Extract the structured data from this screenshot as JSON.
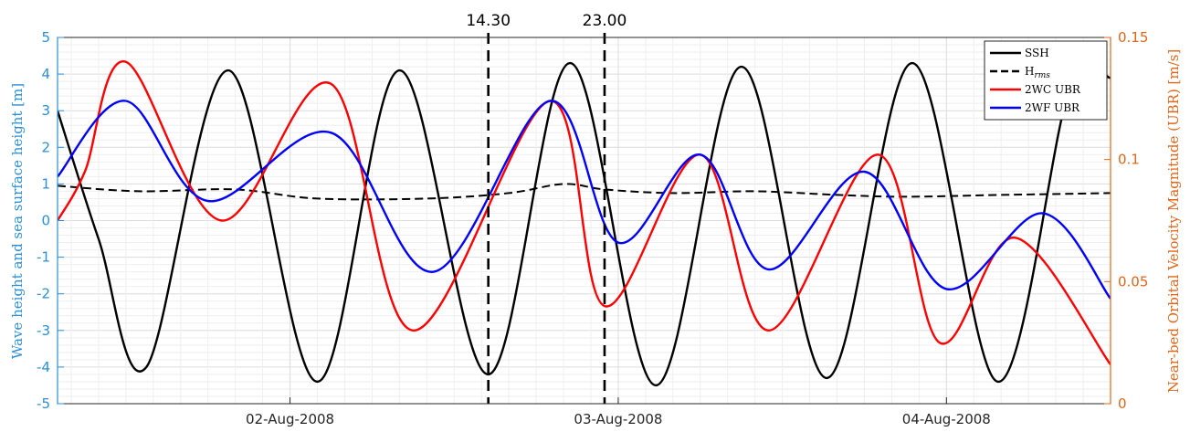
{
  "chart_data": {
    "type": "line",
    "title": "",
    "xlabel": "",
    "x_tick_labels": [
      "02-Aug-2008",
      "03-Aug-2008",
      "04-Aug-2008"
    ],
    "x_range": [
      "01-Aug-2008 07:00",
      "04-Aug-2008 12:00"
    ],
    "left_axis": {
      "label": "Wave height and sea surface height [m]",
      "ylim": [
        -5,
        5
      ],
      "ticks": [
        "5",
        "4",
        "3",
        "2",
        "1",
        "0",
        "-1",
        "-2",
        "-3",
        "-4",
        "-5"
      ],
      "color": "#2b8fd6"
    },
    "right_axis": {
      "label": "Near-bed Orbital Velocity Magnitude (UBR) [m/s]",
      "ylim": [
        0,
        0.15
      ],
      "ticks": [
        "0.15",
        "0.1",
        "0.05",
        "0"
      ],
      "color": "#e0661a"
    },
    "grid": true,
    "legend_position": "top-right",
    "markers": [
      {
        "label": "14.30",
        "x": "02-Aug-2008 14:30"
      },
      {
        "label": "23.00",
        "x": "02-Aug-2008 23:00"
      }
    ],
    "series": [
      {
        "name": "SSH",
        "axis": "left",
        "color": "#000000",
        "style": "solid",
        "points": [
          [
            "01-Aug-2008 07:00",
            3.0
          ],
          [
            "01-Aug-2008 10:00",
            -0.5
          ],
          [
            "01-Aug-2008 13:30",
            -4.0
          ],
          [
            "01-Aug-2008 19:30",
            4.1
          ],
          [
            "02-Aug-2008 02:00",
            -4.4
          ],
          [
            "02-Aug-2008 08:00",
            4.1
          ],
          [
            "02-Aug-2008 14:30",
            -4.2
          ],
          [
            "02-Aug-2008 20:30",
            4.3
          ],
          [
            "03-Aug-2008 02:45",
            -4.5
          ],
          [
            "03-Aug-2008 09:00",
            4.2
          ],
          [
            "03-Aug-2008 15:15",
            -4.3
          ],
          [
            "03-Aug-2008 21:30",
            4.3
          ],
          [
            "04-Aug-2008 03:45",
            -4.4
          ],
          [
            "04-Aug-2008 09:00",
            3.6
          ],
          [
            "04-Aug-2008 12:00",
            3.9
          ]
        ]
      },
      {
        "name": "Hrms",
        "axis": "left",
        "color": "#000000",
        "style": "dashed",
        "points": [
          [
            "01-Aug-2008 07:00",
            0.95
          ],
          [
            "01-Aug-2008 13:00",
            0.8
          ],
          [
            "01-Aug-2008 20:00",
            0.85
          ],
          [
            "02-Aug-2008 02:00",
            0.6
          ],
          [
            "02-Aug-2008 10:00",
            0.6
          ],
          [
            "02-Aug-2008 16:00",
            0.75
          ],
          [
            "02-Aug-2008 20:00",
            1.0
          ],
          [
            "02-Aug-2008 23:00",
            0.85
          ],
          [
            "03-Aug-2008 04:00",
            0.75
          ],
          [
            "03-Aug-2008 10:00",
            0.8
          ],
          [
            "03-Aug-2008 16:00",
            0.7
          ],
          [
            "03-Aug-2008 21:00",
            0.65
          ],
          [
            "04-Aug-2008 04:00",
            0.7
          ],
          [
            "04-Aug-2008 12:00",
            0.75
          ]
        ]
      },
      {
        "name": "2WC UBR",
        "axis": "right",
        "color": "#ff0000",
        "style": "solid",
        "points": [
          [
            "01-Aug-2008 07:00",
            0.075
          ],
          [
            "01-Aug-2008 09:00",
            0.095
          ],
          [
            "01-Aug-2008 12:00",
            0.14
          ],
          [
            "01-Aug-2008 19:00",
            0.075
          ],
          [
            "02-Aug-2008 03:00",
            0.131
          ],
          [
            "02-Aug-2008 09:00",
            0.03
          ],
          [
            "02-Aug-2008 19:00",
            0.124
          ],
          [
            "02-Aug-2008 23:00",
            0.04
          ],
          [
            "03-Aug-2008 06:00",
            0.102
          ],
          [
            "03-Aug-2008 11:00",
            0.03
          ],
          [
            "03-Aug-2008 19:00",
            0.102
          ],
          [
            "03-Aug-2008 23:30",
            0.025
          ],
          [
            "04-Aug-2008 05:00",
            0.068
          ],
          [
            "04-Aug-2008 12:00",
            0.016
          ]
        ]
      },
      {
        "name": "2WF UBR",
        "axis": "right",
        "color": "#0000ff",
        "style": "solid",
        "points": [
          [
            "01-Aug-2008 07:00",
            0.093
          ],
          [
            "01-Aug-2008 12:00",
            0.124
          ],
          [
            "01-Aug-2008 18:00",
            0.083
          ],
          [
            "02-Aug-2008 03:00",
            0.111
          ],
          [
            "02-Aug-2008 10:30",
            0.054
          ],
          [
            "02-Aug-2008 19:00",
            0.124
          ],
          [
            "03-Aug-2008 00:00",
            0.066
          ],
          [
            "03-Aug-2008 06:00",
            0.102
          ],
          [
            "03-Aug-2008 11:00",
            0.055
          ],
          [
            "03-Aug-2008 18:00",
            0.095
          ],
          [
            "04-Aug-2008 00:00",
            0.047
          ],
          [
            "04-Aug-2008 07:00",
            0.078
          ],
          [
            "04-Aug-2008 12:00",
            0.043
          ]
        ]
      }
    ]
  }
}
